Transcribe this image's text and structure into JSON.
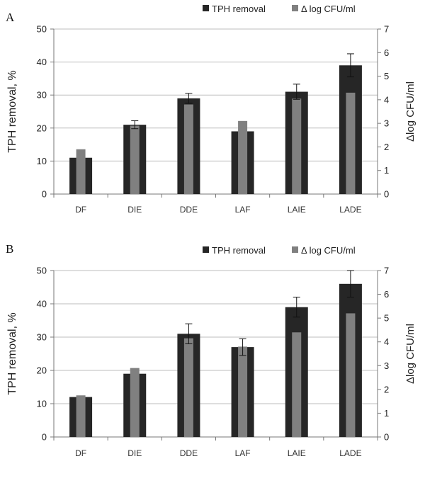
{
  "chart_data": [
    {
      "type": "bar",
      "panel": "A",
      "categories": [
        "DF",
        "DIE",
        "DDE",
        "LAF",
        "LAIE",
        "LADE"
      ],
      "series": [
        {
          "name": "TPH removal",
          "axis": "left",
          "color": "#262626",
          "values": [
            11,
            21,
            29,
            19,
            31,
            39
          ],
          "errors": [
            0,
            1.2,
            1.5,
            0,
            2.3,
            3.5
          ]
        },
        {
          "name": "Δ log CFU/ml",
          "axis": "right",
          "color": "#808080",
          "values": [
            1.9,
            2.9,
            3.8,
            3.1,
            4.05,
            4.3
          ]
        }
      ],
      "ylabel": "TPH removal, %",
      "y2label": "Δlog CFU/ml",
      "ylim": [
        0,
        50
      ],
      "yticks": [
        0,
        10,
        20,
        30,
        40,
        50
      ],
      "y2lim": [
        0,
        7
      ],
      "y2ticks": [
        0,
        1,
        2,
        3,
        4,
        5,
        6,
        7
      ],
      "grid": true,
      "legend": "top-right"
    },
    {
      "type": "bar",
      "panel": "B",
      "categories": [
        "DF",
        "DIE",
        "DDE",
        "LAF",
        "LAIE",
        "LADE"
      ],
      "series": [
        {
          "name": "TPH removal",
          "axis": "left",
          "color": "#262626",
          "values": [
            12,
            19,
            31,
            27,
            39,
            46
          ],
          "errors": [
            0,
            0,
            3,
            2.5,
            3,
            4
          ]
        },
        {
          "name": "Δ log CFU/ml",
          "axis": "right",
          "color": "#808080",
          "values": [
            1.75,
            2.9,
            4.15,
            3.8,
            4.4,
            5.2
          ]
        }
      ],
      "ylabel": "TPH removal, %",
      "y2label": "Δlog CFU/ml",
      "ylim": [
        0,
        50
      ],
      "yticks": [
        0,
        10,
        20,
        30,
        40,
        50
      ],
      "y2lim": [
        0,
        7
      ],
      "y2ticks": [
        0,
        1,
        2,
        3,
        4,
        5,
        6,
        7
      ],
      "grid": true,
      "legend": "top-right"
    }
  ]
}
